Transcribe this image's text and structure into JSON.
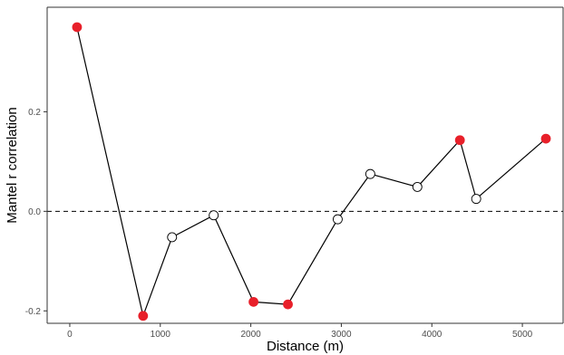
{
  "chart_data": {
    "type": "line",
    "xlabel": "Distance (m)",
    "ylabel": "Mantel r correlation",
    "xlim": [
      -250,
      5450
    ],
    "ylim": [
      -0.225,
      0.41
    ],
    "x_ticks": [
      0,
      1000,
      2000,
      3000,
      4000,
      5000
    ],
    "y_ticks": [
      -0.2,
      0.0,
      0.2
    ],
    "x_tick_labels": [
      "0",
      "1000",
      "2000",
      "3000",
      "4000",
      "5000"
    ],
    "y_tick_labels": [
      "-0.2",
      "0.0",
      "0.2"
    ],
    "reference_line": {
      "y": 0,
      "style": "dashed"
    },
    "grid": false,
    "colors": {
      "significant": "#e8202a",
      "nonsignificant": "#ffffff",
      "line": "#000000"
    },
    "points": [
      {
        "x": 80,
        "y": 0.37,
        "significant": true
      },
      {
        "x": 810,
        "y": -0.21,
        "significant": true
      },
      {
        "x": 1130,
        "y": -0.052,
        "significant": false
      },
      {
        "x": 1590,
        "y": -0.008,
        "significant": false
      },
      {
        "x": 2030,
        "y": -0.182,
        "significant": true
      },
      {
        "x": 2410,
        "y": -0.187,
        "significant": true
      },
      {
        "x": 2960,
        "y": -0.016,
        "significant": false
      },
      {
        "x": 3320,
        "y": 0.075,
        "significant": false
      },
      {
        "x": 3840,
        "y": 0.049,
        "significant": false
      },
      {
        "x": 4310,
        "y": 0.143,
        "significant": true
      },
      {
        "x": 4490,
        "y": 0.025,
        "significant": false
      },
      {
        "x": 5260,
        "y": 0.146,
        "significant": true
      }
    ]
  }
}
